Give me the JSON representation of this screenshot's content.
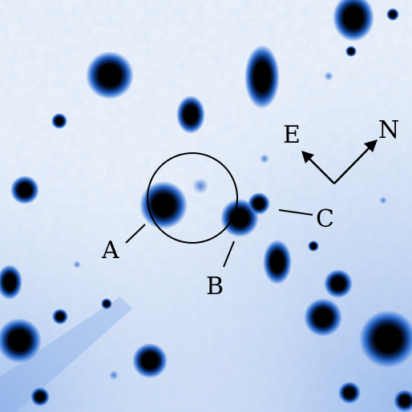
{
  "image": {
    "type": "astronomical-finding-chart",
    "colors": {
      "background": "#e6edf7",
      "star_halo": "#2f6fd0",
      "star_core": "#000000",
      "annotation": "#000000"
    }
  },
  "labels": {
    "source_a": "A",
    "source_b": "B",
    "source_c": "C"
  },
  "compass": {
    "east": "E",
    "north": "N"
  }
}
